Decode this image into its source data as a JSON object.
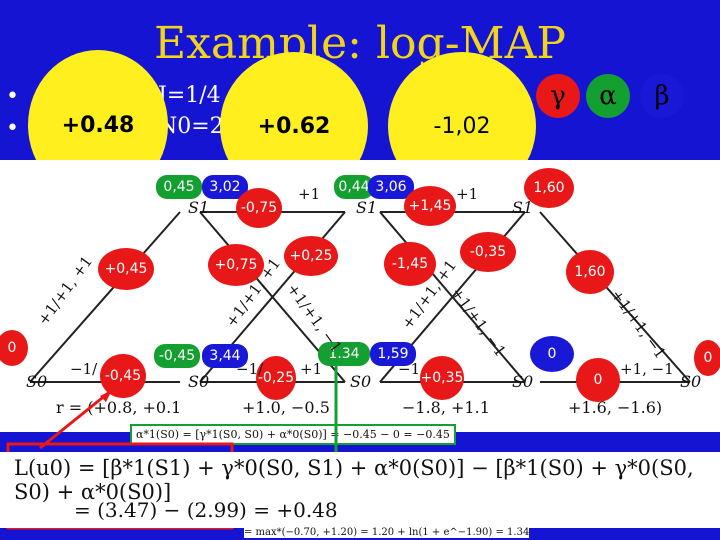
{
  "title": "Example: log-MAP",
  "bullets": [
    {
      "symbol": "•",
      "text": "J=1/4"
    },
    {
      "symbol": "•",
      "text": "N0=2/"
    }
  ],
  "yellow_circles": [
    "+0.48",
    "+0.62",
    "-1,02"
  ],
  "legend": {
    "gamma": "γ",
    "alpha": "α",
    "beta": "β"
  },
  "trellis": {
    "green_values": [
      "0,45",
      "0,44",
      "1.34"
    ],
    "blue_values": [
      "3,02",
      "3,06",
      "3,44",
      "1,59"
    ],
    "alpha_row_green": "-0,45",
    "red_values": [
      "-0,75",
      "+1,45",
      "+0,45",
      "+0,75",
      "+0,25",
      "-1,45",
      "-0,35",
      "1,60",
      "-0,45",
      "-0,25",
      "+0,35",
      "0",
      "1,60",
      "0",
      "0"
    ],
    "left_label": "0",
    "right_label": "0",
    "state_labels": [
      "S1",
      "S1",
      "S1",
      "S0",
      "S0",
      "S0",
      "S0",
      "S0"
    ],
    "edge_labels": [
      "+1",
      "+1",
      "+1/+1, +1",
      "+1/+1, +1",
      "+1/+1, +1",
      "+1/+1, −1",
      "+1/+1, −1",
      "+1/+1, −1",
      "−1/",
      "−1/",
      "+1",
      "−1",
      "+1, −1"
    ],
    "received_prefix": "r = (+0.8, +0.1",
    "received_values": [
      "+1.0, −0.5",
      "−1.8, +1.1",
      "+1.6, −1.6)"
    ]
  },
  "mini_formula": "α*1(S0) = [γ*1(S0, S0) + α*0(S0)] = −0.45 − 0 = −0.45",
  "mini_formula_2": "= max*(−0.70, +1.20) = 1.20 + ln(1 + e^−1.90) = 1.34",
  "formula_line_1": "L(u0) = [β*1(S1) + γ*0(S0, S1) + α*0(S0)] − [β*1(S0) + γ*0(S0, S0) + α*0(S0)]",
  "formula_line_2": "= (3.47) − (2.99) = +0.48",
  "colors": {
    "background": "#1414d2",
    "title": "#f2d41a",
    "yellow": "#ffef1f",
    "green": "#14a030",
    "blue": "#1818d6",
    "red": "#e81818"
  }
}
